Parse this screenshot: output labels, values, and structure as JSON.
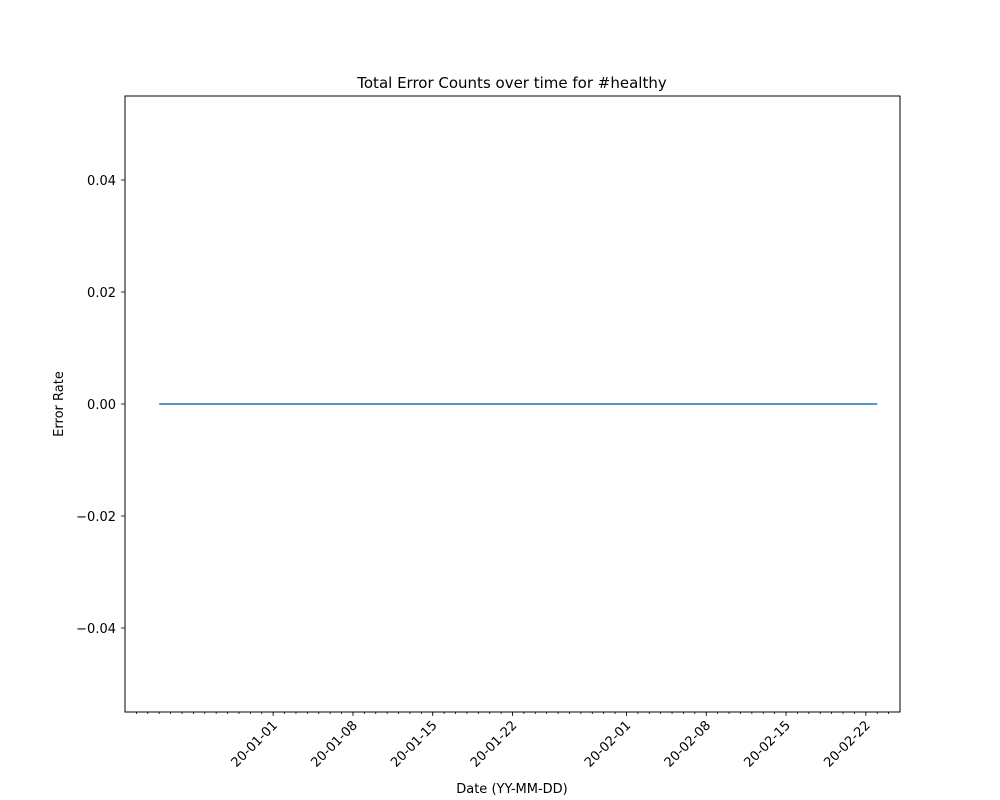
{
  "chart_data": {
    "type": "line",
    "title": "Total Error Counts over time for #healthy",
    "xlabel": "Date (YY-MM-DD)",
    "ylabel": "Error Rate",
    "xlim": [
      "2019-12-19",
      "2020-02-25"
    ],
    "ylim": [
      -0.055,
      0.055
    ],
    "x_ticks": [
      "20-01-01",
      "20-01-08",
      "20-01-15",
      "20-01-22",
      "20-02-01",
      "20-02-08",
      "20-02-15",
      "20-02-22"
    ],
    "x_tick_dates": [
      "2020-01-01",
      "2020-01-08",
      "2020-01-15",
      "2020-01-22",
      "2020-02-01",
      "2020-02-08",
      "2020-02-15",
      "2020-02-22"
    ],
    "y_ticks": [
      "0.04",
      "0.02",
      "0.00",
      "−0.02",
      "−0.04"
    ],
    "y_tick_values": [
      0.04,
      0.02,
      0.0,
      -0.02,
      -0.04
    ],
    "grid": false,
    "series": [
      {
        "color": "#1f77b4",
        "points": [
          {
            "x": "2019-12-22",
            "y": 0
          },
          {
            "x": "2020-02-23",
            "y": 0
          }
        ]
      }
    ]
  }
}
